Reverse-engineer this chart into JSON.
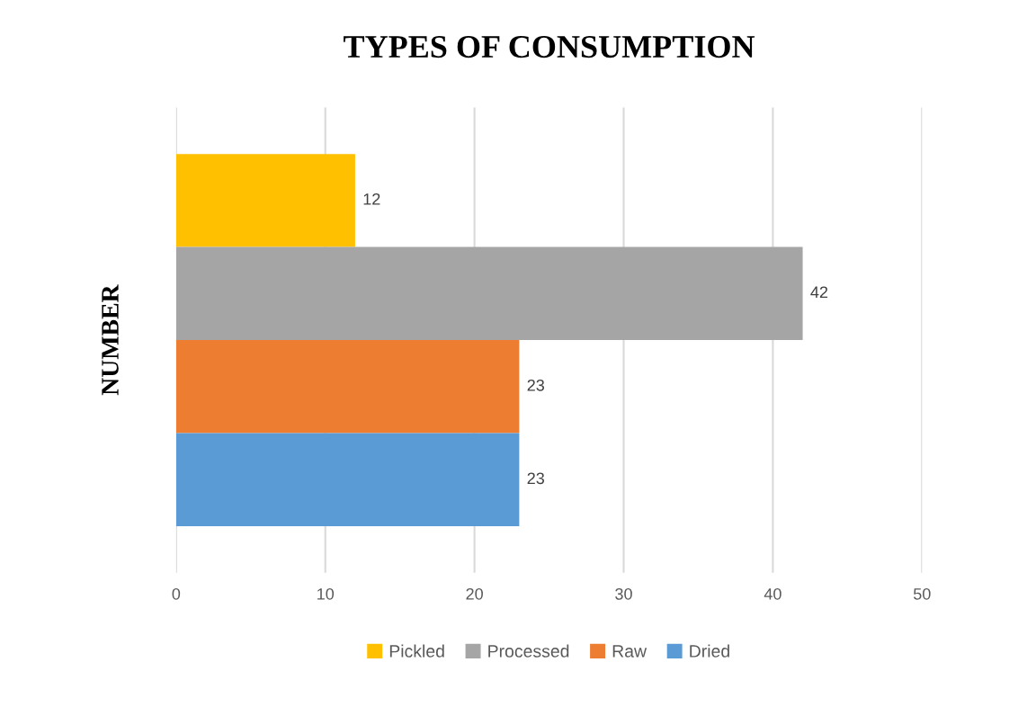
{
  "chart_data": {
    "type": "bar",
    "orientation": "horizontal",
    "title": "TYPES OF CONSUMPTION",
    "ylabel": "NUMBER",
    "categories": [
      null
    ],
    "series": [
      {
        "name": "Pickled",
        "color": "#ffc000",
        "values": [
          12
        ]
      },
      {
        "name": "Processed",
        "color": "#a5a5a5",
        "values": [
          42
        ]
      },
      {
        "name": "Raw",
        "color": "#ed7d31",
        "values": [
          23
        ]
      },
      {
        "name": "Dried",
        "color": "#5b9bd5",
        "values": [
          23
        ]
      }
    ],
    "xlim": [
      0,
      50
    ],
    "xticks": [
      0,
      10,
      20,
      30,
      40,
      50
    ],
    "grid": "x",
    "data_labels": true,
    "legend": "bottom"
  }
}
